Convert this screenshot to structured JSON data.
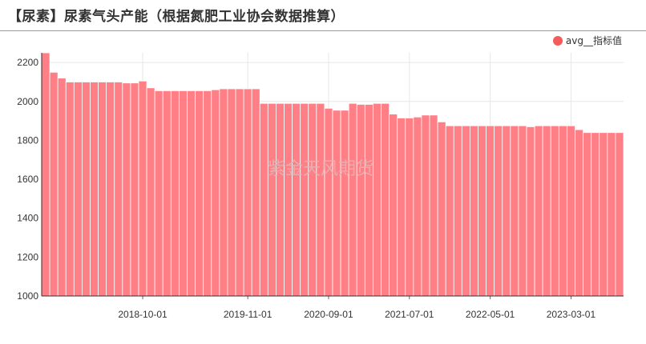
{
  "title": "【尿素】尿素气头产能（根据氮肥工业协会数据推算）",
  "legend": {
    "label": "avg__指标值",
    "color": "#f45b5b"
  },
  "watermark": "紫金天风期货",
  "colors": {
    "bar": "#ff7f86",
    "bar_stroke": "#ffffff"
  },
  "chart_data": {
    "type": "bar",
    "title": "【尿素】尿素气头产能（根据氮肥工业协会数据推算）",
    "xlabel": "",
    "ylabel": "",
    "ylim": [
      1000,
      2250
    ],
    "yticks": [
      1000,
      1200,
      1400,
      1600,
      1800,
      2000,
      2200
    ],
    "xticks": [
      {
        "label": "2018-10-01",
        "index": 12
      },
      {
        "label": "2019-11-01",
        "index": 25
      },
      {
        "label": "2020-09-01",
        "index": 35
      },
      {
        "label": "2021-07-01",
        "index": 45
      },
      {
        "label": "2022-05-01",
        "index": 55
      },
      {
        "label": "2023-03-01",
        "index": 65
      }
    ],
    "grid": true,
    "legend_position": "top-right",
    "series": [
      {
        "name": "avg__指标值",
        "values": [
          2250,
          2150,
          2120,
          2100,
          2100,
          2100,
          2100,
          2100,
          2100,
          2100,
          2095,
          2095,
          2105,
          2070,
          2055,
          2055,
          2055,
          2055,
          2055,
          2055,
          2055,
          2060,
          2065,
          2065,
          2065,
          2065,
          2065,
          1990,
          1990,
          1990,
          1990,
          1990,
          1990,
          1990,
          1990,
          1965,
          1955,
          1955,
          1990,
          1985,
          1985,
          1990,
          1990,
          1935,
          1915,
          1915,
          1920,
          1930,
          1930,
          1895,
          1875,
          1875,
          1875,
          1875,
          1875,
          1875,
          1875,
          1875,
          1875,
          1875,
          1870,
          1875,
          1875,
          1875,
          1875,
          1875,
          1855,
          1840,
          1840,
          1840,
          1840,
          1840
        ]
      }
    ]
  }
}
